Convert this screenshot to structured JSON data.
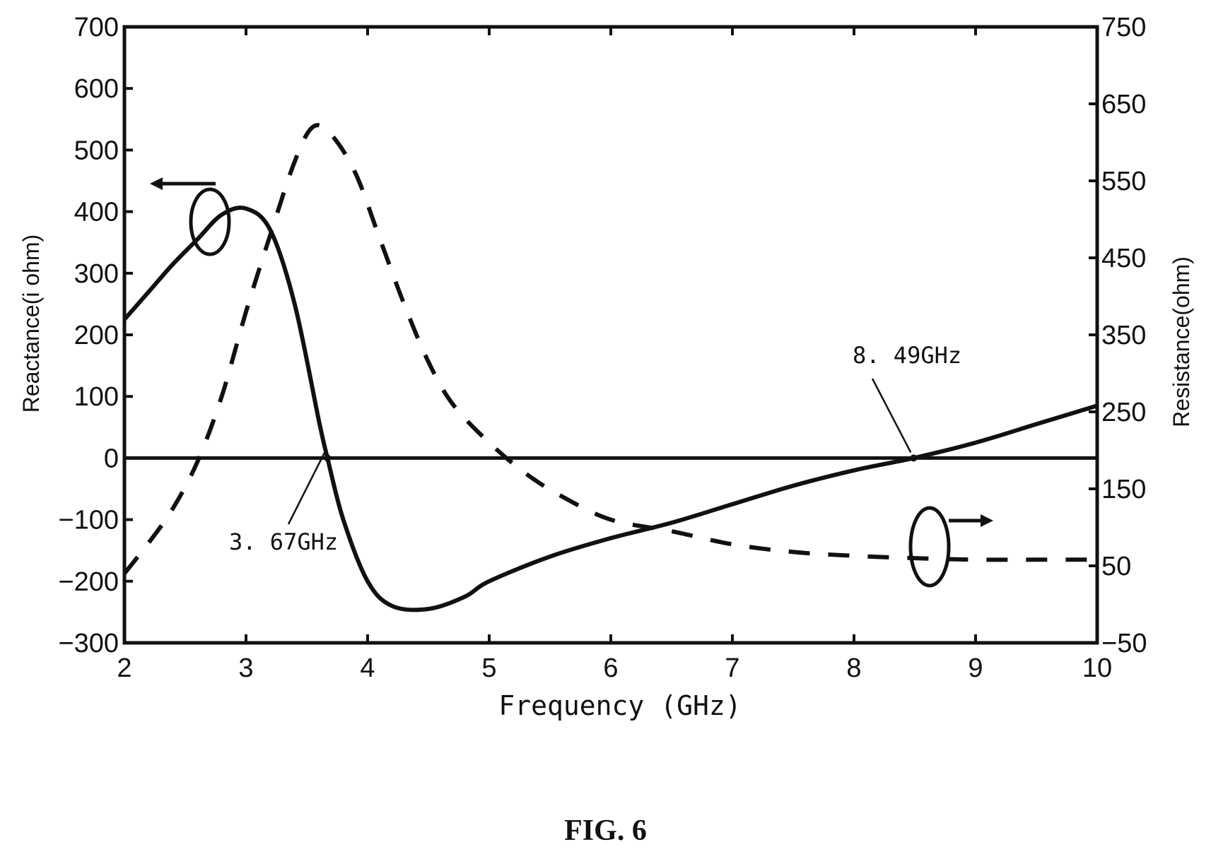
{
  "figure": {
    "caption": "FIG. 6"
  },
  "chart_data": {
    "type": "line",
    "xlabel": "Frequency (GHz)",
    "ylabel_left": "Reactance(i ohm)",
    "ylabel_right": "Resistance(ohm)",
    "xlim": [
      2,
      10
    ],
    "ylim_left": [
      -300,
      700
    ],
    "ylim_right": [
      -50,
      750
    ],
    "x_ticks": [
      2,
      3,
      4,
      5,
      6,
      7,
      8,
      9,
      10
    ],
    "y_ticks_left": [
      -300,
      -200,
      -100,
      0,
      100,
      200,
      300,
      400,
      500,
      600,
      700
    ],
    "y_ticks_right": [
      -50,
      50,
      150,
      250,
      350,
      450,
      550,
      650,
      750
    ],
    "grid": false,
    "series": [
      {
        "axis": "left",
        "style": "solid",
        "x": [
          2.0,
          2.2,
          2.4,
          2.6,
          2.8,
          3.0,
          3.2,
          3.4,
          3.6,
          3.67,
          3.8,
          4.0,
          4.2,
          4.5,
          4.8,
          5.0,
          5.5,
          6.0,
          6.5,
          7.0,
          7.5,
          8.0,
          8.49,
          9.0,
          9.5,
          10.0
        ],
        "y": [
          225,
          270,
          315,
          355,
          395,
          405,
          370,
          250,
          60,
          0,
          -100,
          -200,
          -240,
          -245,
          -225,
          -200,
          -160,
          -130,
          -105,
          -75,
          -45,
          -20,
          0,
          25,
          55,
          85
        ]
      },
      {
        "axis": "right",
        "style": "dashed",
        "x": [
          2.0,
          2.2,
          2.4,
          2.6,
          2.8,
          3.0,
          3.2,
          3.4,
          3.55,
          3.7,
          3.9,
          4.1,
          4.3,
          4.5,
          4.7,
          5.0,
          5.3,
          5.6,
          6.0,
          6.5,
          7.0,
          7.5,
          8.0,
          8.5,
          9.0,
          9.5,
          10.0
        ],
        "y": [
          40,
          80,
          125,
          185,
          270,
          380,
          480,
          575,
          620,
          610,
          560,
          475,
          390,
          315,
          260,
          210,
          170,
          140,
          110,
          95,
          78,
          68,
          63,
          60,
          58,
          58,
          58
        ]
      }
    ],
    "annotations": [
      {
        "text": "3. 67GHz",
        "x": 3.67,
        "y": 0
      },
      {
        "text": "8. 49GHz",
        "x": 8.49,
        "y": 0
      }
    ]
  }
}
